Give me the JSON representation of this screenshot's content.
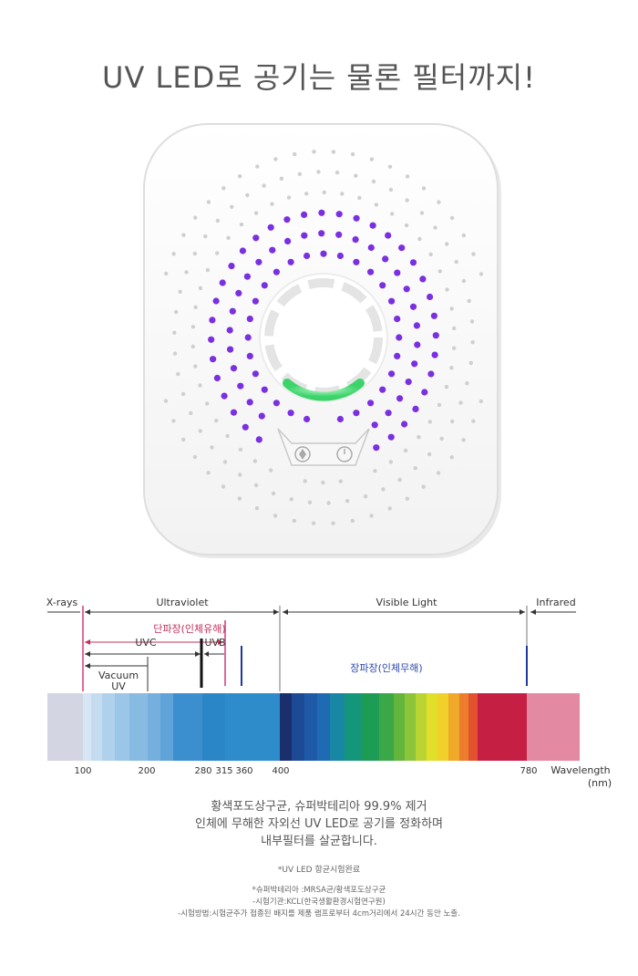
{
  "headline": "UV LED로 공기는 물론 필터까지!",
  "spectrum": {
    "region_labels": {
      "xrays": "X-rays",
      "ultraviolet": "Ultraviolet",
      "visible": "Visible Light",
      "infrared": "Infrared"
    },
    "short_wave_label": "단파장(인체유해)",
    "long_wave_label": "장파장(인체무해)",
    "uvc_label": "UVC",
    "uvb_label": "UVB",
    "vacuum_uv_label": "Vacuum UV",
    "tick_labels": [
      "100",
      "200",
      "280",
      "315",
      "360",
      "400",
      "780"
    ],
    "axis_label": "Wavelength",
    "axis_unit": "(nm)",
    "colors": {
      "harmful": "#c0305a",
      "harmless": "#2b4aa8",
      "uv_purple": "#7a2fe0"
    }
  },
  "description": {
    "line1": "황색포도상구균, 슈퍼박테리아 99.9% 제거",
    "line2": "인체에 무해한 자외선 UV LED로 공기를 정화하며",
    "line3": "내부필터를 살균합니다."
  },
  "test_title": "*UV LED 항균시험완료",
  "notes": {
    "line1": "*슈퍼박테리아 :MRSA균/황색포도상구균",
    "line2": "-시험기관:KCL(한국생활환경시험연구원)",
    "line3": "-시험방법:시험균주가 접종된 배지를 제품 램프로부터 4cm거리에서 24시간 동안 노출."
  }
}
